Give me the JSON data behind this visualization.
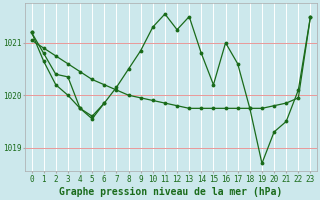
{
  "xlabel": "Graphe pression niveau de la mer (hPa)",
  "background_color": "#cce8ec",
  "plot_bg_color": "#cce8ec",
  "grid_color": "#ffffff",
  "line_color": "#1a6b1a",
  "hours": [
    0,
    1,
    2,
    3,
    4,
    5,
    6,
    7,
    8,
    9,
    10,
    11,
    12,
    13,
    14,
    15,
    16,
    17,
    18,
    19,
    20,
    21,
    22,
    23
  ],
  "main_series": [
    1021.2,
    1020.8,
    1020.4,
    1020.35,
    1019.75,
    1019.55,
    1019.85,
    1020.15,
    1020.5,
    1020.85,
    1021.3,
    1021.55,
    1021.25,
    1021.5,
    1020.8,
    1020.2,
    1021.0,
    1020.6,
    1019.75,
    1018.7,
    1019.3,
    1019.5,
    1020.1,
    1021.5
  ],
  "flat_series": [
    1021.05,
    1020.9,
    1020.75,
    1020.6,
    1020.45,
    1020.3,
    1020.2,
    1020.1,
    1020.0,
    1019.95,
    1019.9,
    1019.85,
    1019.8,
    1019.75,
    1019.75,
    1019.75,
    1019.75,
    1019.75,
    1019.75,
    1019.75,
    1019.8,
    1019.85,
    1019.95,
    1021.5
  ],
  "extra1_x": [
    0,
    1,
    2,
    3,
    4,
    5,
    6
  ],
  "extra1_y": [
    1021.2,
    1020.65,
    1020.2,
    1020.0,
    1019.75,
    1019.6,
    1019.85
  ],
  "ylim_min": 1018.55,
  "ylim_max": 1021.75,
  "yticks": [
    1019.0,
    1020.0,
    1021.0
  ],
  "ytick_labels": [
    "1019",
    "1020",
    "1021"
  ],
  "hline_color": "#e89898",
  "xlabel_fontsize": 7,
  "tick_fontsize": 5.5
}
